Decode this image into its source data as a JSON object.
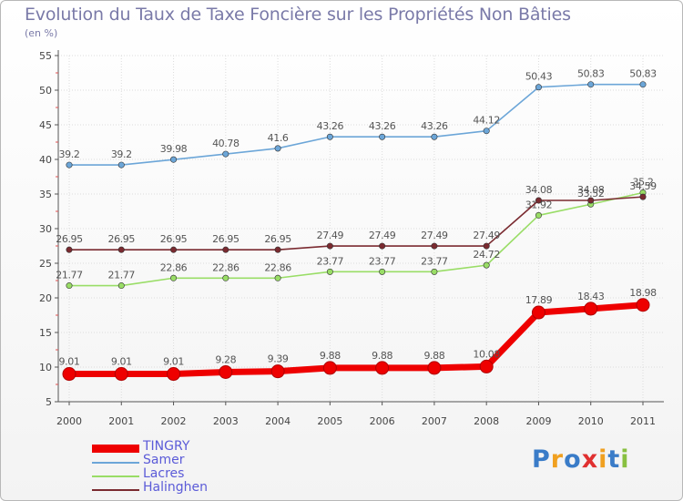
{
  "chart_data": {
    "type": "line",
    "title": "Evolution du Taux de Taxe Foncière sur les Propriétés Non Bâties",
    "ylabel": "(en %)",
    "xlabel": "",
    "x": [
      "2000",
      "2001",
      "2002",
      "2003",
      "2004",
      "2005",
      "2006",
      "2007",
      "2008",
      "2009",
      "2010",
      "2011"
    ],
    "ylim": [
      5,
      55
    ],
    "yticks": [
      "5",
      "10",
      "15",
      "20",
      "25",
      "30",
      "35",
      "40",
      "45",
      "50",
      "55"
    ],
    "ytick_values": [
      5,
      10,
      15,
      20,
      25,
      30,
      35,
      40,
      45,
      50,
      55
    ],
    "grid": true,
    "legend_position": "bottom-left",
    "series": [
      {
        "name": "TINGRY",
        "color": "#ee0000",
        "values": [
          9.01,
          9.01,
          9.01,
          9.28,
          9.39,
          9.88,
          9.88,
          9.88,
          10.08,
          17.89,
          18.43,
          18.98
        ],
        "labels": [
          "9.01",
          "9.01",
          "9.01",
          "9.28",
          "9.39",
          "9.88",
          "9.88",
          "9.88",
          "10.08",
          "17.89",
          "18.43",
          "18.98"
        ]
      },
      {
        "name": "Samer",
        "color": "#6ca6d8",
        "values": [
          39.2,
          39.2,
          39.98,
          40.78,
          41.6,
          43.26,
          43.26,
          43.26,
          44.12,
          50.43,
          50.83,
          50.83
        ],
        "labels": [
          "39.2",
          "39.2",
          "39.98",
          "40.78",
          "41.6",
          "43.26",
          "43.26",
          "43.26",
          "44.12",
          "50.43",
          "50.83",
          "50.83"
        ]
      },
      {
        "name": "Lacres",
        "color": "#99dd66",
        "values": [
          21.77,
          21.77,
          22.86,
          22.86,
          22.86,
          23.77,
          23.77,
          23.77,
          24.72,
          31.92,
          33.52,
          35.2
        ],
        "labels": [
          "21.77",
          "21.77",
          "22.86",
          "22.86",
          "22.86",
          "23.77",
          "23.77",
          "23.77",
          "24.72",
          "31.92",
          "33.52",
          "35.2"
        ]
      },
      {
        "name": "Halinghen",
        "color": "#7a2a30",
        "values": [
          26.95,
          26.95,
          26.95,
          26.95,
          26.95,
          27.49,
          27.49,
          27.49,
          27.49,
          34.08,
          34.08,
          34.59
        ],
        "labels": [
          "26.95",
          "26.95",
          "26.95",
          "26.95",
          "26.95",
          "27.49",
          "27.49",
          "27.49",
          "27.49",
          "34.08",
          "34.08",
          "34.59"
        ]
      }
    ]
  },
  "logo": {
    "letters": [
      "P",
      "r",
      "o",
      "x",
      "i",
      "t",
      "i"
    ]
  }
}
